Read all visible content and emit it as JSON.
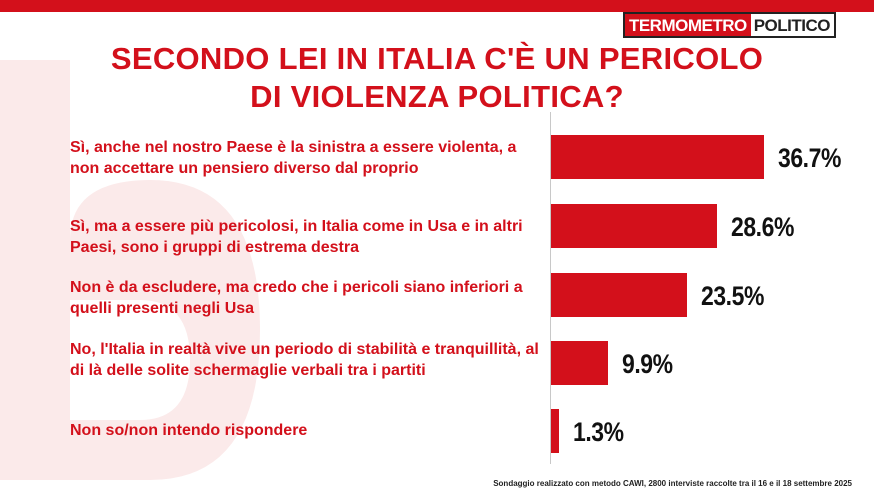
{
  "brand": {
    "logo_part1": "TERMOMETRO",
    "logo_part2": "POLITICO",
    "accent_color": "#d3101b"
  },
  "footnote": "Sondaggio realizzato con metodo CAWI, 2800 interviste raccolte tra il 16 e il 18 settembre 2025",
  "chart_data": {
    "type": "bar",
    "orientation": "horizontal",
    "title_lines": [
      "SECONDO LEI IN ITALIA C'È UN PERICOLO",
      "DI VIOLENZA POLITICA?"
    ],
    "categories": [
      "Sì, anche nel nostro Paese è la sinistra a essere violenta, a non accettare un pensiero diverso dal proprio",
      "Sì, ma a essere più pericolosi, in Italia come in Usa e in altri Paesi, sono i gruppi di estrema destra",
      "Non è da escludere, ma credo che i pericoli siano inferiori a quelli presenti negli Usa",
      "No, l'Italia in realtà  vive un periodo di stabilità e tranquillità, al di là delle solite schermaglie verbali tra i partiti",
      "Non so/non intendo rispondere"
    ],
    "values": [
      36.7,
      28.6,
      23.5,
      9.9,
      1.3
    ],
    "value_labels": [
      "36.7%",
      "28.6%",
      "23.5%",
      "9.9%",
      "1.3%"
    ],
    "unit": "%",
    "bar_color": "#d3101b",
    "xlim": [
      0,
      40
    ],
    "grid": false,
    "legend": "none"
  }
}
